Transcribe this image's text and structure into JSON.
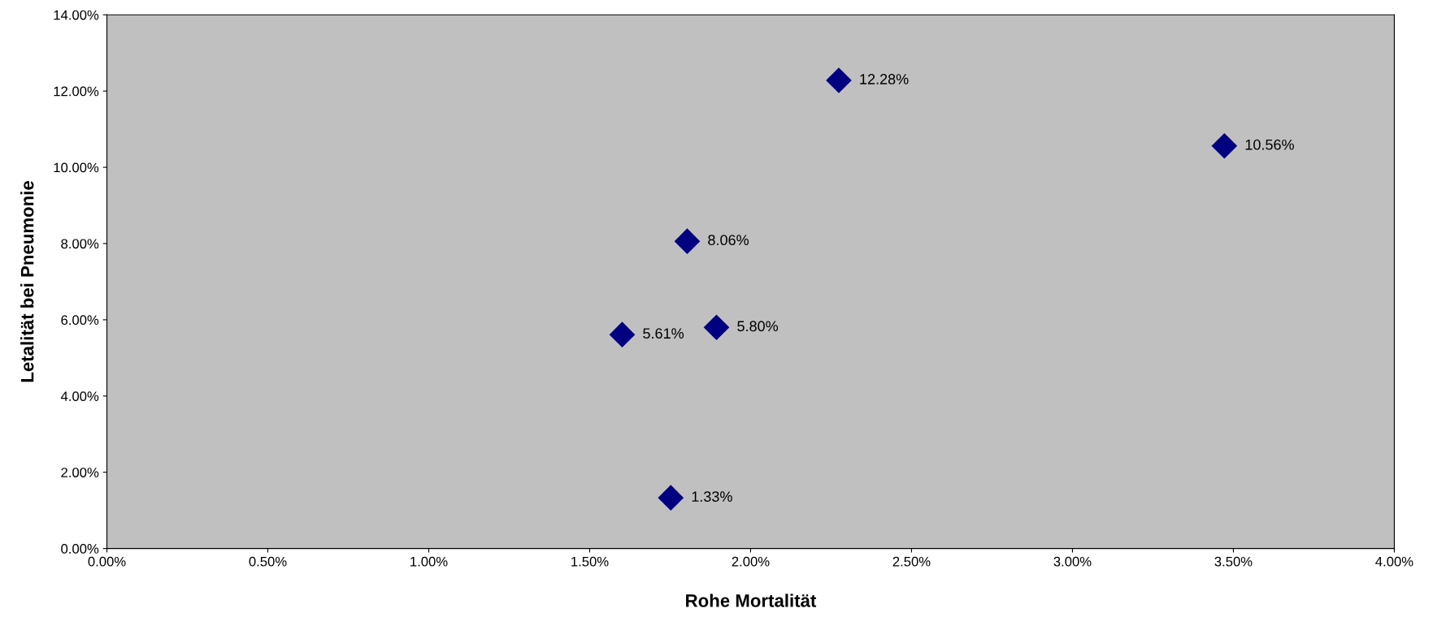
{
  "chart_data": {
    "type": "scatter",
    "xlabel": "Rohe Mortalität",
    "ylabel": "Letalität bei Pneumonie",
    "x": [
      1.752,
      1.601,
      1.803,
      1.894,
      2.274,
      3.472
    ],
    "values": [
      1.33,
      5.61,
      8.06,
      5.8,
      12.28,
      10.56
    ],
    "value_labels": [
      "1.33%",
      "5.61%",
      "8.06%",
      "5.80%",
      "12.28%",
      "10.56%"
    ],
    "color": "#000080",
    "marker": "diamond",
    "grid": false,
    "legend": false,
    "xlim": [
      0,
      4
    ],
    "ylim": [
      0,
      14
    ],
    "xticks": [
      {
        "value": 0,
        "label": "0.00%"
      },
      {
        "value": 0.5,
        "label": "0.50%"
      },
      {
        "value": 1,
        "label": "1.00%"
      },
      {
        "value": 1.5,
        "label": "1.50%"
      },
      {
        "value": 2,
        "label": "2.00%"
      },
      {
        "value": 2.5,
        "label": "2.50%"
      },
      {
        "value": 3,
        "label": "3.00%"
      },
      {
        "value": 3.5,
        "label": "3.50%"
      },
      {
        "value": 4,
        "label": "4.00%"
      }
    ],
    "yticks": [
      {
        "value": 0,
        "label": "0.00%"
      },
      {
        "value": 2,
        "label": "2.00%"
      },
      {
        "value": 4,
        "label": "4.00%"
      },
      {
        "value": 6,
        "label": "6.00%"
      },
      {
        "value": 8,
        "label": "8.00%"
      },
      {
        "value": 10,
        "label": "10.00%"
      },
      {
        "value": 12,
        "label": "12.00%"
      },
      {
        "value": 14,
        "label": "14.00%"
      }
    ]
  }
}
